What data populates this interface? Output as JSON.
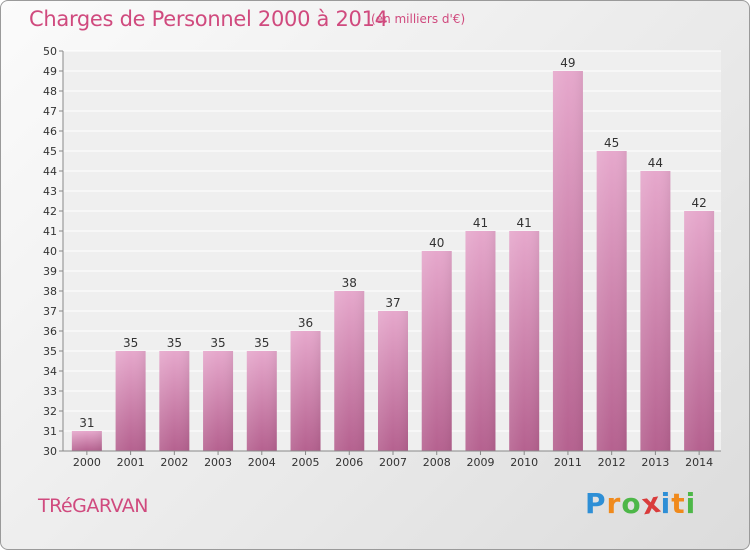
{
  "title": "Charges de Personnel 2000 à 2014",
  "subtitle": "(en milliers d'€)",
  "commune": "TRéGARVAN",
  "logo": {
    "letters": [
      "P",
      "r",
      "o",
      "x",
      "i",
      "t",
      "i"
    ],
    "colors": [
      "#2e8fd6",
      "#f08a1c",
      "#4db748",
      "#d93b3b",
      "#2e8fd6",
      "#f08a1c",
      "#4db748"
    ]
  },
  "chart_data": {
    "type": "bar",
    "title": "Charges de Personnel 2000 à 2014",
    "subtitle": "(en milliers d'€)",
    "categories": [
      "2000",
      "2001",
      "2002",
      "2003",
      "2004",
      "2005",
      "2006",
      "2007",
      "2008",
      "2009",
      "2010",
      "2011",
      "2012",
      "2013",
      "2014"
    ],
    "values": [
      31,
      35,
      35,
      35,
      35,
      36,
      38,
      37,
      40,
      41,
      41,
      49,
      45,
      44,
      42
    ],
    "ylim": [
      30,
      50
    ],
    "yticks": [
      30,
      31,
      32,
      33,
      34,
      35,
      36,
      37,
      38,
      39,
      40,
      41,
      42,
      43,
      44,
      45,
      46,
      47,
      48,
      49,
      50
    ],
    "grid": true,
    "bar_color": "#c8699e"
  }
}
